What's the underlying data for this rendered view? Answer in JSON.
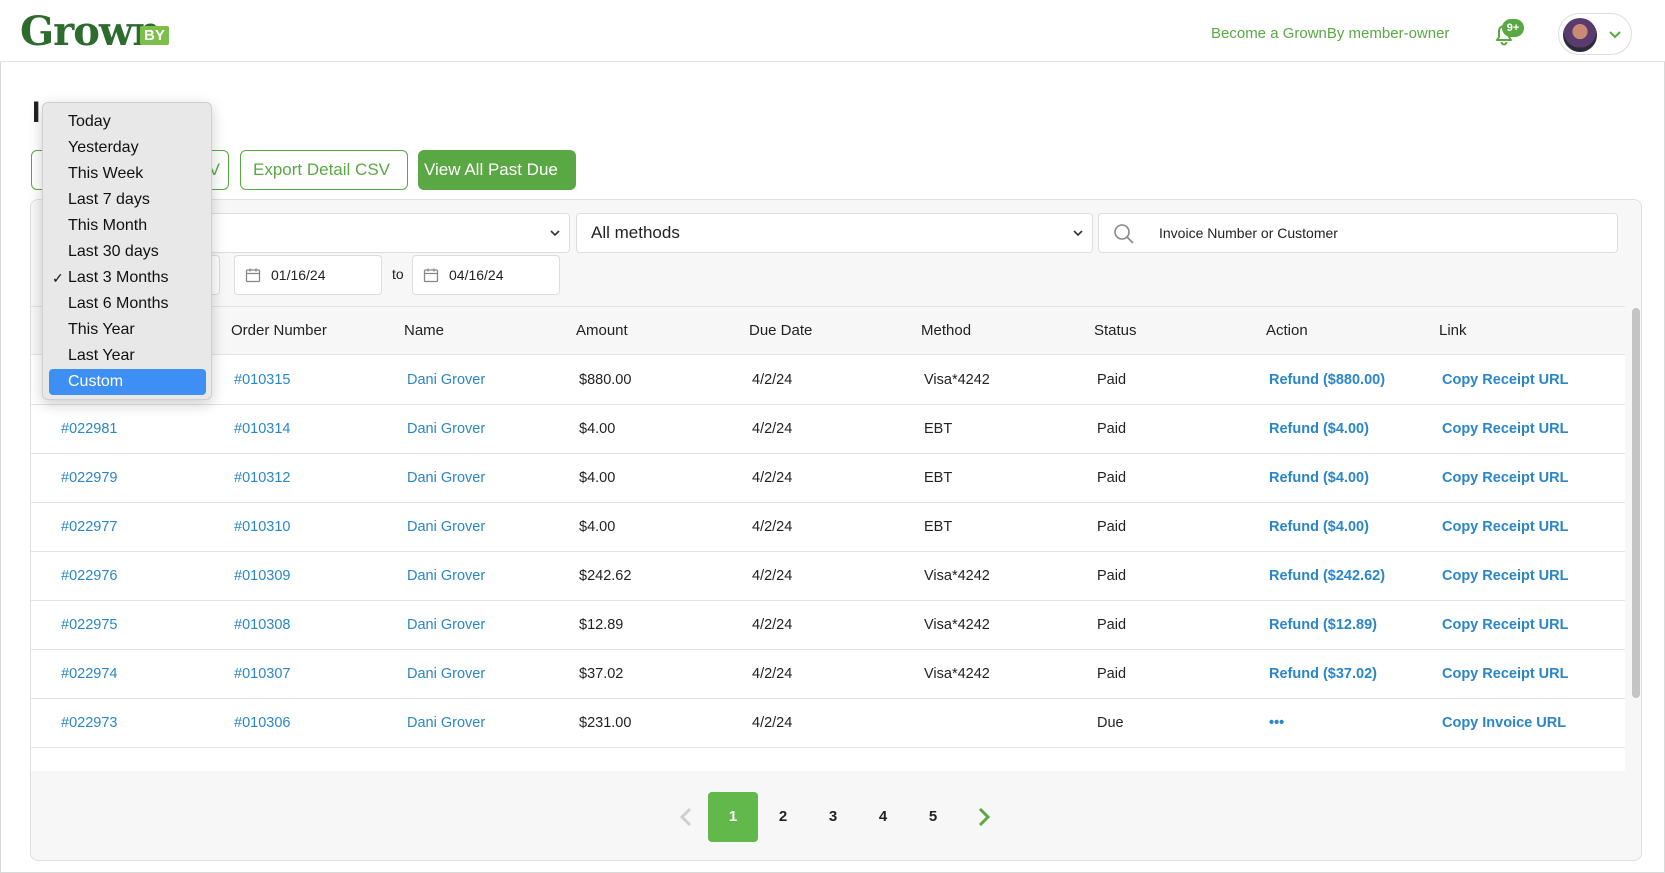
{
  "header": {
    "logo_text": "Grown",
    "logo_badge": "BY",
    "member_link": "Become a GrownBy member-owner",
    "notification_badge": "9+"
  },
  "page": {
    "title": "I"
  },
  "toolbar": {
    "export_summary_label": "V",
    "export_detail_label": "Export Detail CSV",
    "view_past_due_label": "View All Past Due"
  },
  "filters": {
    "method_select": "All methods",
    "search_placeholder": "Invoice Number or Customer",
    "date_from": "01/16/24",
    "date_to": "04/16/24",
    "to_label": "to"
  },
  "date_range_dropdown": {
    "selected": "Last 3 Months",
    "highlighted": "Custom",
    "options": [
      "Today",
      "Yesterday",
      "This Week",
      "Last 7 days",
      "This Month",
      "Last 30 days",
      "Last 3 Months",
      "Last 6 Months",
      "This Year",
      "Last Year",
      "Custom"
    ]
  },
  "table": {
    "headers": [
      "Order Number",
      "Name",
      "Amount",
      "Due Date",
      "Method",
      "Status",
      "Action",
      "Link"
    ],
    "rows": [
      {
        "invoice": "",
        "order": "#010315",
        "name": "Dani Grover",
        "amount": "$880.00",
        "due": "4/2/24",
        "method": "Visa*4242",
        "status": "Paid",
        "action": "Refund ($880.00)",
        "link": "Copy Receipt URL"
      },
      {
        "invoice": "#022981",
        "order": "#010314",
        "name": "Dani Grover",
        "amount": "$4.00",
        "due": "4/2/24",
        "method": "EBT",
        "status": "Paid",
        "action": "Refund ($4.00)",
        "link": "Copy Receipt URL"
      },
      {
        "invoice": "#022979",
        "order": "#010312",
        "name": "Dani Grover",
        "amount": "$4.00",
        "due": "4/2/24",
        "method": "EBT",
        "status": "Paid",
        "action": "Refund ($4.00)",
        "link": "Copy Receipt URL"
      },
      {
        "invoice": "#022977",
        "order": "#010310",
        "name": "Dani Grover",
        "amount": "$4.00",
        "due": "4/2/24",
        "method": "EBT",
        "status": "Paid",
        "action": "Refund ($4.00)",
        "link": "Copy Receipt URL"
      },
      {
        "invoice": "#022976",
        "order": "#010309",
        "name": "Dani Grover",
        "amount": "$242.62",
        "due": "4/2/24",
        "method": "Visa*4242",
        "status": "Paid",
        "action": "Refund ($242.62)",
        "link": "Copy Receipt URL"
      },
      {
        "invoice": "#022975",
        "order": "#010308",
        "name": "Dani Grover",
        "amount": "$12.89",
        "due": "4/2/24",
        "method": "Visa*4242",
        "status": "Paid",
        "action": "Refund ($12.89)",
        "link": "Copy Receipt URL"
      },
      {
        "invoice": "#022974",
        "order": "#010307",
        "name": "Dani Grover",
        "amount": "$37.02",
        "due": "4/2/24",
        "method": "Visa*4242",
        "status": "Paid",
        "action": "Refund ($37.02)",
        "link": "Copy Receipt URL"
      },
      {
        "invoice": "#022973",
        "order": "#010306",
        "name": "Dani Grover",
        "amount": "$231.00",
        "due": "4/2/24",
        "method": "",
        "status": "Due",
        "action": "•••",
        "link": "Copy Invoice URL"
      }
    ]
  },
  "pagination": {
    "pages": [
      "1",
      "2",
      "3",
      "4",
      "5"
    ],
    "current": "1"
  },
  "colors": {
    "brand_green": "#5aa844",
    "link_blue": "#2a86c8",
    "selection_blue": "#3d8ff4"
  }
}
